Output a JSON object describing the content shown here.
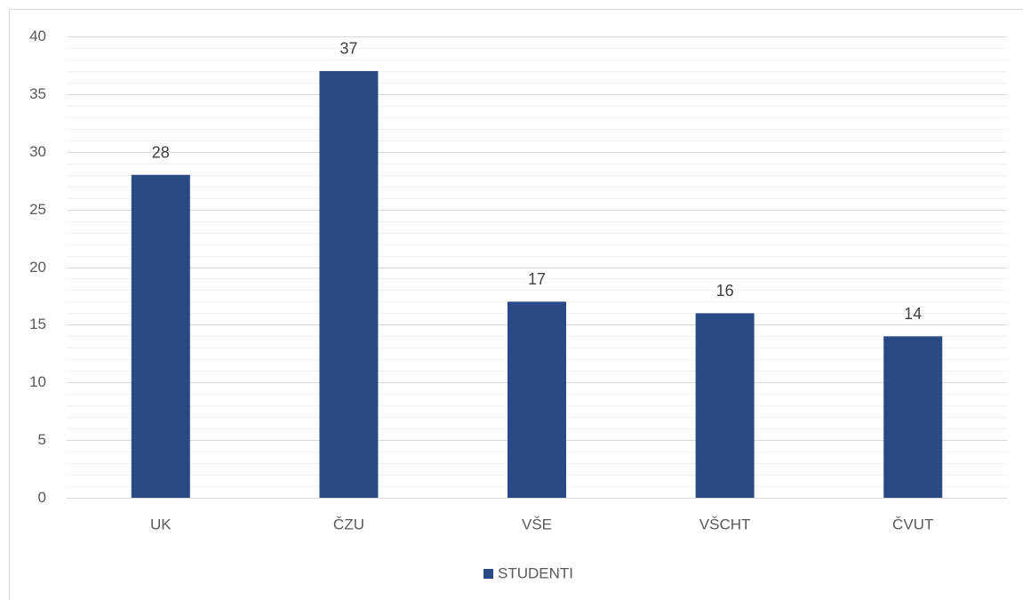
{
  "chart_data": {
    "type": "bar",
    "categories": [
      "UK",
      "ČZU",
      "VŠE",
      "VŠCHT",
      "ČVUT"
    ],
    "series": [
      {
        "name": "STUDENTI",
        "color": "#2a4a85",
        "values": [
          28,
          37,
          17,
          16,
          14
        ]
      }
    ],
    "ylim": [
      0,
      40
    ],
    "yticks": [
      0,
      5,
      10,
      15,
      20,
      25,
      30,
      35,
      40
    ],
    "yminorticks": [
      1,
      2,
      3,
      4,
      6,
      7,
      8,
      9,
      11,
      12,
      13,
      14,
      16,
      17,
      18,
      19,
      21,
      22,
      23,
      24,
      26,
      27,
      28,
      29,
      31,
      32,
      33,
      34,
      36,
      37,
      38,
      39
    ],
    "grid": true,
    "legend": "bottom"
  }
}
